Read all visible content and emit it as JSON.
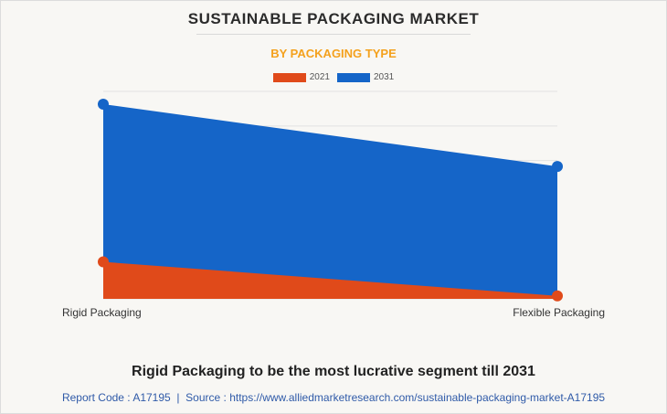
{
  "title": "SUSTAINABLE PACKAGING MARKET",
  "subtitle": "BY PACKAGING TYPE",
  "headline": "Rigid Packaging to be the most lucrative segment till 2031",
  "footer": {
    "report_code_label": "Report Code : A17195",
    "separator": "|",
    "source_label": "Source : https://www.alliedmarketresearch.com/sustainable-packaging-market-A17195"
  },
  "colors": {
    "series_2021": "#e04a1a",
    "series_2031": "#1565c8",
    "subtitle": "#f4a11d"
  },
  "chart_data": {
    "type": "area",
    "title": "BY PACKAGING TYPE",
    "categories": [
      "Rigid Packaging",
      "Flexible Packaging"
    ],
    "series": [
      {
        "name": "2021",
        "values": [
          19,
          1.5
        ]
      },
      {
        "name": "2031",
        "values": [
          100,
          68
        ]
      }
    ],
    "ylim": [
      0,
      100
    ],
    "y_gridlines": 6,
    "legend": "top-center",
    "xlabel": "",
    "ylabel": ""
  }
}
